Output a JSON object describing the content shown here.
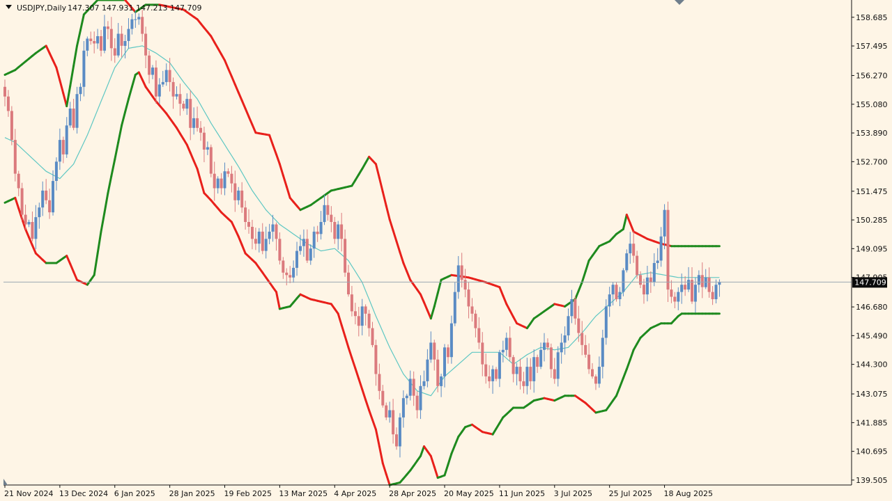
{
  "chart_data": {
    "type": "candlestick",
    "symbol": "USDJPY",
    "timeframe": "Daily",
    "ohlc_readout": {
      "open": "147.307",
      "high": "147.931",
      "low": "147.213",
      "close": "147.709"
    },
    "current_price_label": "147.709",
    "current_price": 147.709,
    "y_axis": {
      "ticks": [
        "158.685",
        "157.495",
        "156.270",
        "155.080",
        "153.890",
        "152.700",
        "151.475",
        "150.285",
        "149.095",
        "147.905",
        "146.680",
        "145.490",
        "144.300",
        "143.075",
        "141.885",
        "140.695",
        "139.505"
      ],
      "ylim": [
        139.3,
        159.4
      ]
    },
    "x_axis": {
      "ticks": [
        "21 Nov 2024",
        "13 Dec 2024",
        "6 Jan 2025",
        "28 Jan 2025",
        "19 Feb 2025",
        "13 Mar 2025",
        "4 Apr 2025",
        "28 Apr 2025",
        "20 May 2025",
        "11 Jun 2025",
        "3 Jul 2025",
        "25 Jul 2025",
        "18 Aug 2025"
      ],
      "tick_bar_index": [
        0,
        16,
        32,
        48,
        64,
        80,
        96,
        112,
        128,
        144,
        160,
        176,
        192
      ]
    },
    "series": [
      {
        "name": "candles",
        "close": [
          155.4,
          154.8,
          153.6,
          152.2,
          151.6,
          150.5,
          150.1,
          150.2,
          149.5,
          150.4,
          150.8,
          151.5,
          151.1,
          150.6,
          151.9,
          152.7,
          153.6,
          153.0,
          154.2,
          154.9,
          154.1,
          155.5,
          155.8,
          157.3,
          157.8,
          157.7,
          157.6,
          157.9,
          157.3,
          158.3,
          158.2,
          157.4,
          157.1,
          158.0,
          157.5,
          157.7,
          158.2,
          158.6,
          158.6,
          158.7,
          158.0,
          157.1,
          156.3,
          156.6,
          155.4,
          155.9,
          156.0,
          156.5,
          156.0,
          155.4,
          155.5,
          155.1,
          154.9,
          155.3,
          154.1,
          154.5,
          154.1,
          153.9,
          153.2,
          153.3,
          152.2,
          151.6,
          152.0,
          151.6,
          152.3,
          152.2,
          151.8,
          151.1,
          151.5,
          150.8,
          150.2,
          150.0,
          149.5,
          149.3,
          149.8,
          149.0,
          149.5,
          149.8,
          150.1,
          149.5,
          148.6,
          148.1,
          148.0,
          147.9,
          148.3,
          149.0,
          149.2,
          149.5,
          148.6,
          149.1,
          149.8,
          149.7,
          150.2,
          150.9,
          150.5,
          150.2,
          149.5,
          150.1,
          149.5,
          148.1,
          147.2,
          146.5,
          146.3,
          145.9,
          146.7,
          146.4,
          145.8,
          145.1,
          143.9,
          143.2,
          142.6,
          142.1,
          142.4,
          141.4,
          140.9,
          142.1,
          142.9,
          143.0,
          143.7,
          143.0,
          142.4,
          143.4,
          143.6,
          144.5,
          145.2,
          144.5,
          143.4,
          143.8,
          145.0,
          144.6,
          146.0,
          147.3,
          148.4,
          147.8,
          147.4,
          146.7,
          146.4,
          145.8,
          145.2,
          144.3,
          143.8,
          143.6,
          144.1,
          143.7,
          144.8,
          144.9,
          145.4,
          144.6,
          143.9,
          144.2,
          143.6,
          143.4,
          144.2,
          143.6,
          144.6,
          144.2,
          144.9,
          145.2,
          145.0,
          144.1,
          143.7,
          144.8,
          145.2,
          145.5,
          146.3,
          147.0,
          146.2,
          145.6,
          145.1,
          144.7,
          144.1,
          143.8,
          143.5,
          144.2,
          145.4,
          146.7,
          147.2,
          147.6,
          147.0,
          147.3,
          148.2,
          148.9,
          149.3,
          148.8,
          148.0,
          147.6,
          147.2,
          147.9,
          147.7,
          148.5,
          148.6,
          149.6,
          150.7,
          147.4,
          147.1,
          146.9,
          147.3,
          147.6,
          147.4,
          147.8,
          146.9,
          147.6,
          148.0,
          147.5,
          147.9,
          147.3,
          147.0,
          147.6,
          147.709
        ]
      },
      {
        "name": "upper_band",
        "anchors": [
          [
            0,
            156.3
          ],
          [
            3,
            156.5
          ],
          [
            9,
            157.2
          ],
          [
            12,
            157.5
          ],
          [
            15,
            156.6
          ],
          [
            18,
            155.0
          ],
          [
            21,
            157.5
          ],
          [
            23,
            158.8
          ],
          [
            27,
            159.4
          ],
          [
            35,
            159.4
          ],
          [
            38,
            158.9
          ],
          [
            41,
            159.2
          ],
          [
            45,
            159.2
          ],
          [
            52,
            159.0
          ],
          [
            56,
            158.6
          ],
          [
            60,
            157.9
          ],
          [
            64,
            156.9
          ],
          [
            67,
            155.9
          ],
          [
            70,
            154.9
          ],
          [
            73,
            153.9
          ],
          [
            77,
            153.8
          ],
          [
            80,
            152.6
          ],
          [
            83,
            151.2
          ],
          [
            86,
            150.7
          ],
          [
            89,
            150.9
          ],
          [
            92,
            151.2
          ],
          [
            95,
            151.5
          ],
          [
            98,
            151.6
          ],
          [
            101,
            151.7
          ],
          [
            104,
            152.4
          ],
          [
            106,
            152.9
          ],
          [
            108,
            152.6
          ],
          [
            112,
            150.3
          ],
          [
            116,
            148.5
          ],
          [
            118,
            147.8
          ],
          [
            121,
            147.2
          ],
          [
            124,
            146.2
          ],
          [
            125,
            146.7
          ],
          [
            127,
            147.8
          ],
          [
            130,
            148.0
          ],
          [
            135,
            147.9
          ],
          [
            140,
            147.7
          ],
          [
            142,
            147.6
          ],
          [
            144,
            147.5
          ],
          [
            146,
            146.8
          ],
          [
            149,
            146.0
          ],
          [
            152,
            145.8
          ],
          [
            154,
            146.2
          ],
          [
            157,
            146.5
          ],
          [
            160,
            146.8
          ],
          [
            163,
            146.7
          ],
          [
            166,
            147.0
          ],
          [
            168,
            147.7
          ],
          [
            170,
            148.6
          ],
          [
            173,
            149.2
          ],
          [
            176,
            149.4
          ],
          [
            178,
            149.7
          ],
          [
            180,
            149.9
          ],
          [
            181,
            150.5
          ],
          [
            183,
            149.8
          ],
          [
            187,
            149.5
          ],
          [
            191,
            149.3
          ],
          [
            194,
            149.2
          ],
          [
            197,
            149.2
          ]
        ]
      },
      {
        "name": "middle_band",
        "anchors": [
          [
            0,
            153.7
          ],
          [
            3,
            153.5
          ],
          [
            9,
            152.7
          ],
          [
            12,
            152.3
          ],
          [
            16,
            152.0
          ],
          [
            20,
            152.6
          ],
          [
            24,
            153.8
          ],
          [
            28,
            155.2
          ],
          [
            32,
            156.6
          ],
          [
            36,
            157.4
          ],
          [
            40,
            157.5
          ],
          [
            44,
            157.2
          ],
          [
            48,
            156.8
          ],
          [
            52,
            156.0
          ],
          [
            56,
            155.3
          ],
          [
            60,
            154.3
          ],
          [
            64,
            153.4
          ],
          [
            68,
            152.5
          ],
          [
            72,
            151.5
          ],
          [
            76,
            150.7
          ],
          [
            80,
            150.1
          ],
          [
            84,
            149.7
          ],
          [
            88,
            149.3
          ],
          [
            92,
            149.0
          ],
          [
            96,
            149.1
          ],
          [
            100,
            148.6
          ],
          [
            104,
            147.7
          ],
          [
            108,
            146.3
          ],
          [
            112,
            145.0
          ],
          [
            116,
            143.9
          ],
          [
            120,
            143.2
          ],
          [
            124,
            143.0
          ],
          [
            128,
            143.8
          ],
          [
            132,
            144.3
          ],
          [
            136,
            144.8
          ],
          [
            140,
            144.8
          ],
          [
            144,
            144.8
          ],
          [
            148,
            144.3
          ],
          [
            152,
            144.7
          ],
          [
            156,
            145.0
          ],
          [
            160,
            144.9
          ],
          [
            164,
            145.0
          ],
          [
            168,
            145.6
          ],
          [
            172,
            146.3
          ],
          [
            176,
            146.8
          ],
          [
            180,
            147.3
          ],
          [
            184,
            148.0
          ],
          [
            188,
            148.1
          ],
          [
            192,
            148.0
          ],
          [
            196,
            147.9
          ],
          [
            197,
            147.9
          ]
        ]
      },
      {
        "name": "lower_band",
        "anchors": [
          [
            0,
            151.0
          ],
          [
            3,
            151.2
          ],
          [
            6,
            149.9
          ],
          [
            9,
            148.9
          ],
          [
            12,
            148.5
          ],
          [
            15,
            148.5
          ],
          [
            18,
            148.8
          ],
          [
            21,
            147.8
          ],
          [
            24,
            147.6
          ],
          [
            26,
            148.0
          ],
          [
            28,
            149.8
          ],
          [
            30,
            151.4
          ],
          [
            32,
            152.8
          ],
          [
            34,
            154.2
          ],
          [
            36,
            155.3
          ],
          [
            38,
            156.3
          ],
          [
            39,
            156.4
          ],
          [
            41,
            155.8
          ],
          [
            44,
            155.2
          ],
          [
            47,
            154.7
          ],
          [
            50,
            154.1
          ],
          [
            53,
            153.4
          ],
          [
            56,
            152.4
          ],
          [
            58,
            151.4
          ],
          [
            60,
            151.1
          ],
          [
            63,
            150.6
          ],
          [
            66,
            150.2
          ],
          [
            68,
            149.6
          ],
          [
            70,
            148.9
          ],
          [
            73,
            148.5
          ],
          [
            76,
            147.9
          ],
          [
            79,
            147.3
          ],
          [
            80,
            146.6
          ],
          [
            83,
            146.7
          ],
          [
            86,
            147.2
          ],
          [
            89,
            147.0
          ],
          [
            92,
            146.9
          ],
          [
            95,
            146.8
          ],
          [
            97,
            146.4
          ],
          [
            100,
            145.0
          ],
          [
            103,
            143.7
          ],
          [
            106,
            142.4
          ],
          [
            108,
            141.6
          ],
          [
            110,
            140.2
          ],
          [
            112,
            139.3
          ],
          [
            115,
            139.4
          ],
          [
            118,
            139.9
          ],
          [
            121,
            140.5
          ],
          [
            122,
            140.9
          ],
          [
            124,
            140.5
          ],
          [
            126,
            139.6
          ],
          [
            128,
            139.7
          ],
          [
            130,
            140.6
          ],
          [
            132,
            141.3
          ],
          [
            134,
            141.7
          ],
          [
            136,
            141.8
          ],
          [
            139,
            141.5
          ],
          [
            142,
            141.4
          ],
          [
            145,
            142.1
          ],
          [
            148,
            142.5
          ],
          [
            151,
            142.5
          ],
          [
            154,
            142.8
          ],
          [
            157,
            142.9
          ],
          [
            160,
            142.8
          ],
          [
            163,
            143.0
          ],
          [
            166,
            143.0
          ],
          [
            169,
            142.7
          ],
          [
            172,
            142.3
          ],
          [
            175,
            142.4
          ],
          [
            178,
            143.0
          ],
          [
            181,
            144.1
          ],
          [
            183,
            144.9
          ],
          [
            185,
            145.4
          ],
          [
            188,
            145.8
          ],
          [
            191,
            146.0
          ],
          [
            194,
            146.0
          ],
          [
            196,
            146.3
          ],
          [
            197,
            146.4
          ]
        ]
      }
    ],
    "colors": {
      "background": "#FEF5E6",
      "bull_candle": "#5A8BC4",
      "bear_candle": "#DB7A7D",
      "rising_band": "#1E8A1E",
      "falling_band": "#E8201B",
      "middle_band": "#5DC7C3",
      "price_line": "#9AA7B2",
      "price_label_bg": "#0B0B0B",
      "price_label_fg": "#FFFFFF",
      "axis_text": "#111111"
    }
  }
}
